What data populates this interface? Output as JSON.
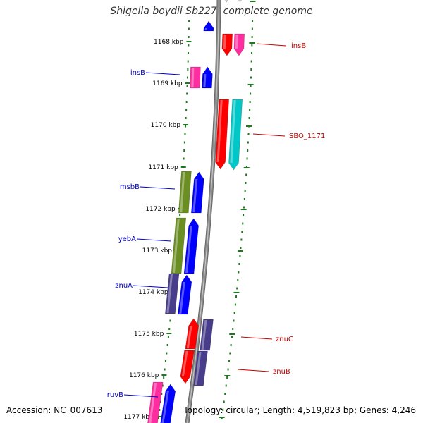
{
  "title": "Shigella boydii Sb227, complete genome",
  "footer": {
    "accession": "Accession: NC_007613",
    "info": "Topology: circular; Length: 4,519,823 bp; Genes: 4,246"
  },
  "colors": {
    "tick": "#1e7a1e",
    "backbone": "#8c8c8c",
    "left_label": "#0000c8",
    "right_label": "#c80000"
  },
  "ticks": [
    {
      "label": "1168 kbp"
    },
    {
      "label": "1169 kbp"
    },
    {
      "label": "1170 kbp"
    },
    {
      "label": "1171 kbp"
    },
    {
      "label": "1172 kbp"
    },
    {
      "label": "1173 kbp"
    },
    {
      "label": "1174 kbp"
    },
    {
      "label": "1175 kbp"
    },
    {
      "label": "1176 kbp"
    },
    {
      "label": "1177 kbp"
    }
  ],
  "genes": [
    {
      "strand": "right",
      "color": "#c8c8c8",
      "dir": "down"
    },
    {
      "strand": "right",
      "color": "#c8c8c8",
      "dir": "down"
    },
    {
      "strand": "left",
      "color": "#0000ff",
      "dir": "up"
    },
    {
      "strand": "right",
      "color": "#ff0000",
      "dir": "down"
    },
    {
      "strand": "right",
      "color": "#ff2ea0",
      "dir": "down"
    },
    {
      "strand": "left",
      "color": "#ff2ea0",
      "dir": "none"
    },
    {
      "strand": "left",
      "color": "#0000ff",
      "dir": "up"
    },
    {
      "strand": "right",
      "color": "#ff0000",
      "dir": "down"
    },
    {
      "strand": "right",
      "color": "#00c8c8",
      "dir": "down"
    },
    {
      "strand": "left",
      "color": "#6b8e23",
      "dir": "none"
    },
    {
      "strand": "left",
      "color": "#0000ff",
      "dir": "up"
    },
    {
      "strand": "left",
      "color": "#6b8e23",
      "dir": "none"
    },
    {
      "strand": "left",
      "color": "#0000ff",
      "dir": "up"
    },
    {
      "strand": "left",
      "color": "#483d8b",
      "dir": "none"
    },
    {
      "strand": "left",
      "color": "#0000ff",
      "dir": "up"
    },
    {
      "strand": "right",
      "color": "#ff0000",
      "dir": "up"
    },
    {
      "strand": "right",
      "color": "#483d8b",
      "dir": "none"
    },
    {
      "strand": "right",
      "color": "#ff0000",
      "dir": "down"
    },
    {
      "strand": "right",
      "color": "#483d8b",
      "dir": "none"
    },
    {
      "strand": "left",
      "color": "#ff2ea0",
      "dir": "none"
    },
    {
      "strand": "left",
      "color": "#0000ff",
      "dir": "up"
    }
  ],
  "labels": [
    {
      "text": "insB",
      "side": "right"
    },
    {
      "text": "insB",
      "side": "left"
    },
    {
      "text": "SBO_1171",
      "side": "right"
    },
    {
      "text": "msbB",
      "side": "left"
    },
    {
      "text": "yebA",
      "side": "left"
    },
    {
      "text": "znuA",
      "side": "left"
    },
    {
      "text": "znuC",
      "side": "right"
    },
    {
      "text": "znuB",
      "side": "right"
    },
    {
      "text": "ruvB",
      "side": "left"
    }
  ]
}
